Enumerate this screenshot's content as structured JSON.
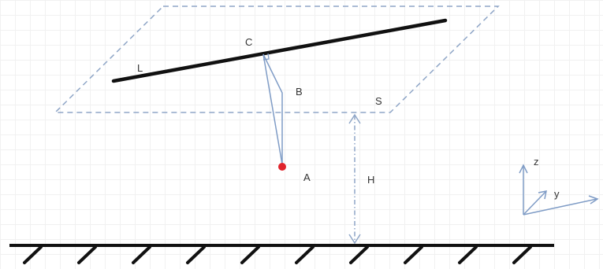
{
  "labels": {
    "line": "L",
    "contact_point": "C",
    "bend_point": "B",
    "plane": "S",
    "point_a": "A",
    "height": "H",
    "axis_z": "z",
    "axis_y": "y"
  },
  "colors": {
    "plane_dash": "#8fa6c7",
    "height_arrow": "#8fa6c7",
    "pendulum": "#7f9cc6",
    "line": "#111111",
    "ground": "#111111",
    "point_a": "#e0242c",
    "axes": "#7f9cc6"
  }
}
